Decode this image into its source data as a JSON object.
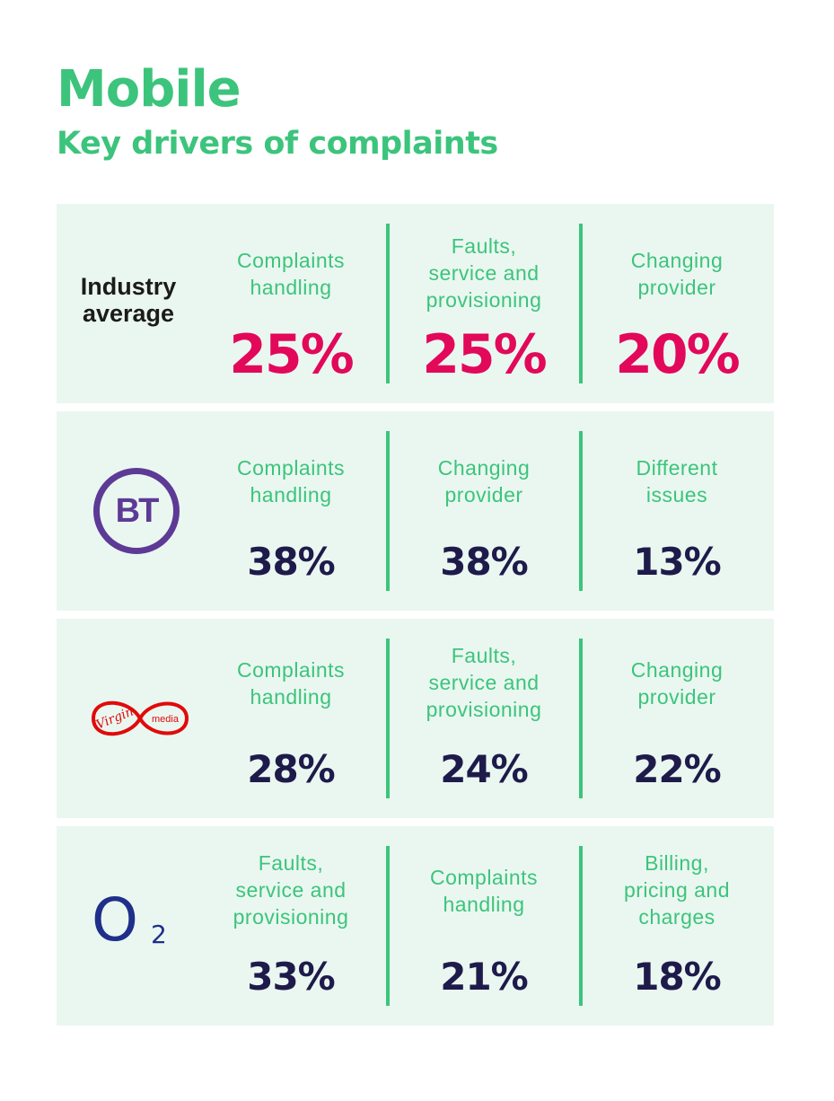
{
  "header": {
    "title": "Mobile",
    "subtitle": "Key drivers of complaints"
  },
  "rows": [
    {
      "label": "Industry\naverage",
      "logo": null,
      "drivers": [
        {
          "label": "Complaints\nhandling",
          "value": "25%"
        },
        {
          "label": "Faults,\nservice and\nprovisioning",
          "value": "25%"
        },
        {
          "label": "Changing\nprovider",
          "value": "20%"
        }
      ]
    },
    {
      "logo": "bt-logo",
      "logo_text": "BT",
      "drivers": [
        {
          "label": "Complaints\nhandling",
          "value": "38%"
        },
        {
          "label": "Changing\nprovider",
          "value": "38%"
        },
        {
          "label": "Different\nissues",
          "value": "13%"
        }
      ]
    },
    {
      "logo": "virgin-media-logo",
      "logo_text": [
        "Virgin",
        "media"
      ],
      "drivers": [
        {
          "label": "Complaints\nhandling",
          "value": "28%"
        },
        {
          "label": "Faults,\nservice and\nprovisioning",
          "value": "24%"
        },
        {
          "label": "Changing\nprovider",
          "value": "22%"
        }
      ]
    },
    {
      "logo": "o2-logo",
      "logo_text": [
        "O",
        "2"
      ],
      "drivers": [
        {
          "label": "Faults,\nservice and\nprovisioning",
          "value": "33%"
        },
        {
          "label": "Complaints\nhandling",
          "value": "21%"
        },
        {
          "label": "Billing,\npricing and\ncharges",
          "value": "18%"
        }
      ]
    }
  ],
  "colors": {
    "accent_green": "#3cc47c",
    "panel_background": "#eaf7f0",
    "industry_value": "#e2085a",
    "provider_value": "#1e1b4b",
    "bt_purple": "#5d3a96",
    "virgin_red": "#e10a0a",
    "o2_blue": "#1f2f8a"
  }
}
